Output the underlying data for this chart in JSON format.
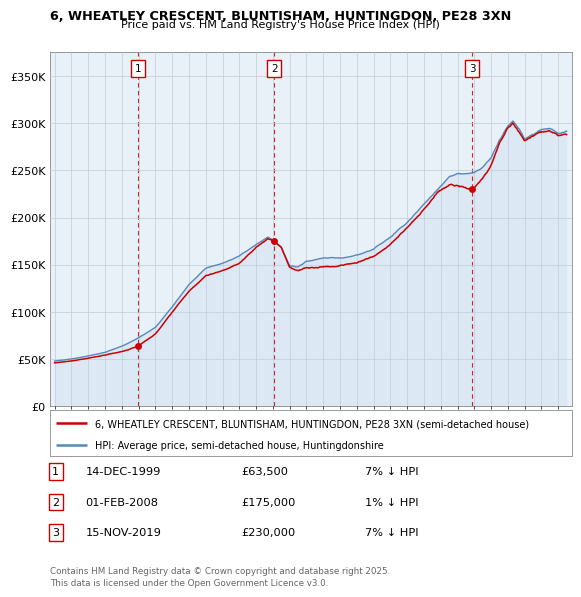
{
  "title1": "6, WHEATLEY CRESCENT, BLUNTISHAM, HUNTINGDON, PE28 3XN",
  "title2": "Price paid vs. HM Land Registry's House Price Index (HPI)",
  "yticks": [
    0,
    50000,
    100000,
    150000,
    200000,
    250000,
    300000,
    350000
  ],
  "ytick_labels": [
    "£0",
    "£50K",
    "£100K",
    "£150K",
    "£200K",
    "£250K",
    "£300K",
    "£350K"
  ],
  "xlim_start": 1994.7,
  "xlim_end": 2025.8,
  "ylim": [
    0,
    375000
  ],
  "sale_dates": [
    1999.96,
    2008.09,
    2019.88
  ],
  "sale_prices": [
    63500,
    175000,
    230000
  ],
  "sale_labels": [
    "1",
    "2",
    "3"
  ],
  "legend_line1": "6, WHEATLEY CRESCENT, BLUNTISHAM, HUNTINGDON, PE28 3XN (semi-detached house)",
  "legend_line2": "HPI: Average price, semi-detached house, Huntingdonshire",
  "table_rows": [
    {
      "num": "1",
      "date": "14-DEC-1999",
      "price": "£63,500",
      "note": "7% ↓ HPI"
    },
    {
      "num": "2",
      "date": "01-FEB-2008",
      "price": "£175,000",
      "note": "1% ↓ HPI"
    },
    {
      "num": "3",
      "date": "15-NOV-2019",
      "price": "£230,000",
      "note": "7% ↓ HPI"
    }
  ],
  "footer": "Contains HM Land Registry data © Crown copyright and database right 2025.\nThis data is licensed under the Open Government Licence v3.0.",
  "red_color": "#cc0000",
  "blue_color": "#5588bb",
  "blue_fill": "#dde8f5",
  "bg_color": "#e8f0f8",
  "grid_color": "#c0ccd8",
  "dashed_color": "#cc0000"
}
